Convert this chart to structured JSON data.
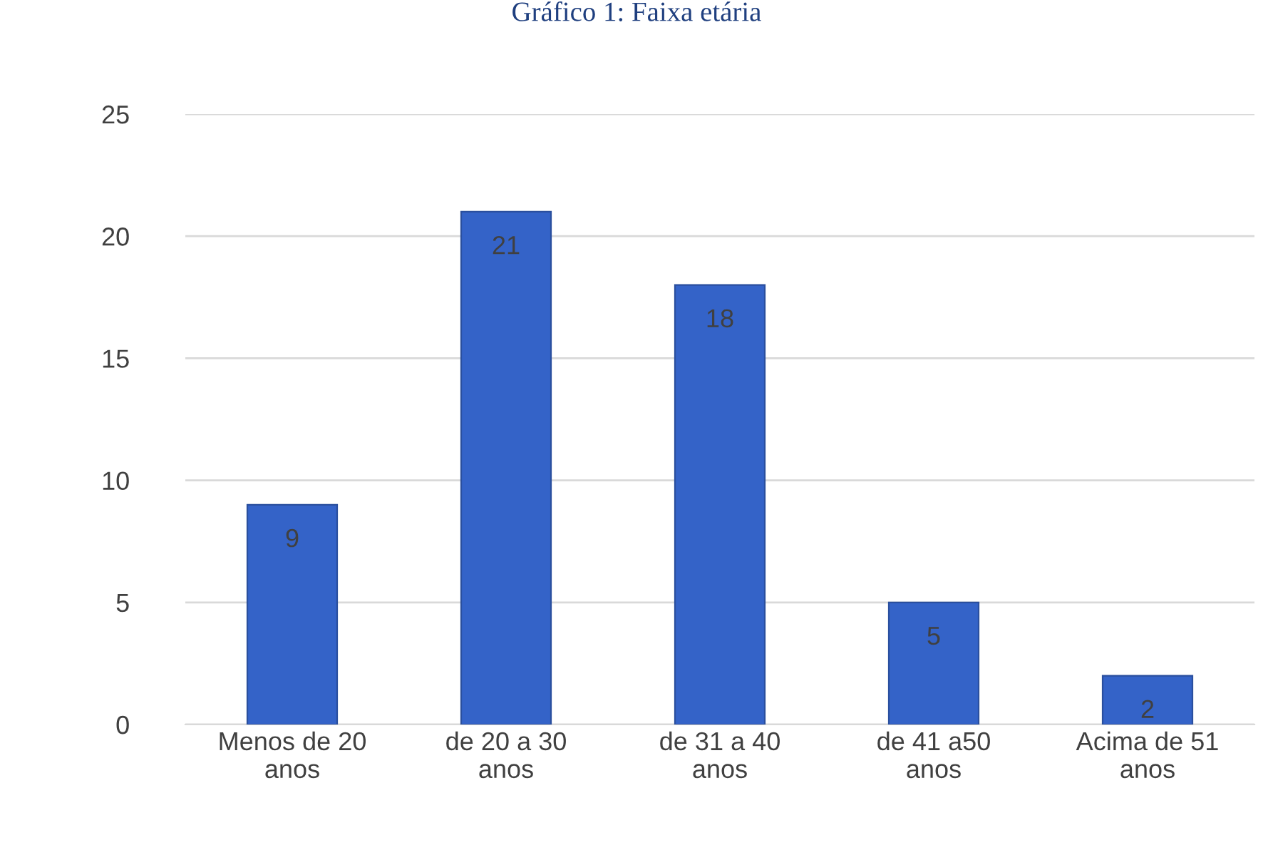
{
  "chart_data": {
    "type": "bar",
    "title": "Gráfico 1: Faixa etária",
    "categories": [
      "Menos de 20\nanos",
      "de 20 a 30\nanos",
      "de 31 a 40\nanos",
      "de 41 a50\nanos",
      "Acima de 51\nanos"
    ],
    "values": [
      9,
      21,
      18,
      5,
      2
    ],
    "color": "#3463c8",
    "ylim": [
      0,
      25
    ],
    "yticks": [
      0,
      5,
      10,
      15,
      20,
      25
    ],
    "grid": "y",
    "data_labels": true
  }
}
